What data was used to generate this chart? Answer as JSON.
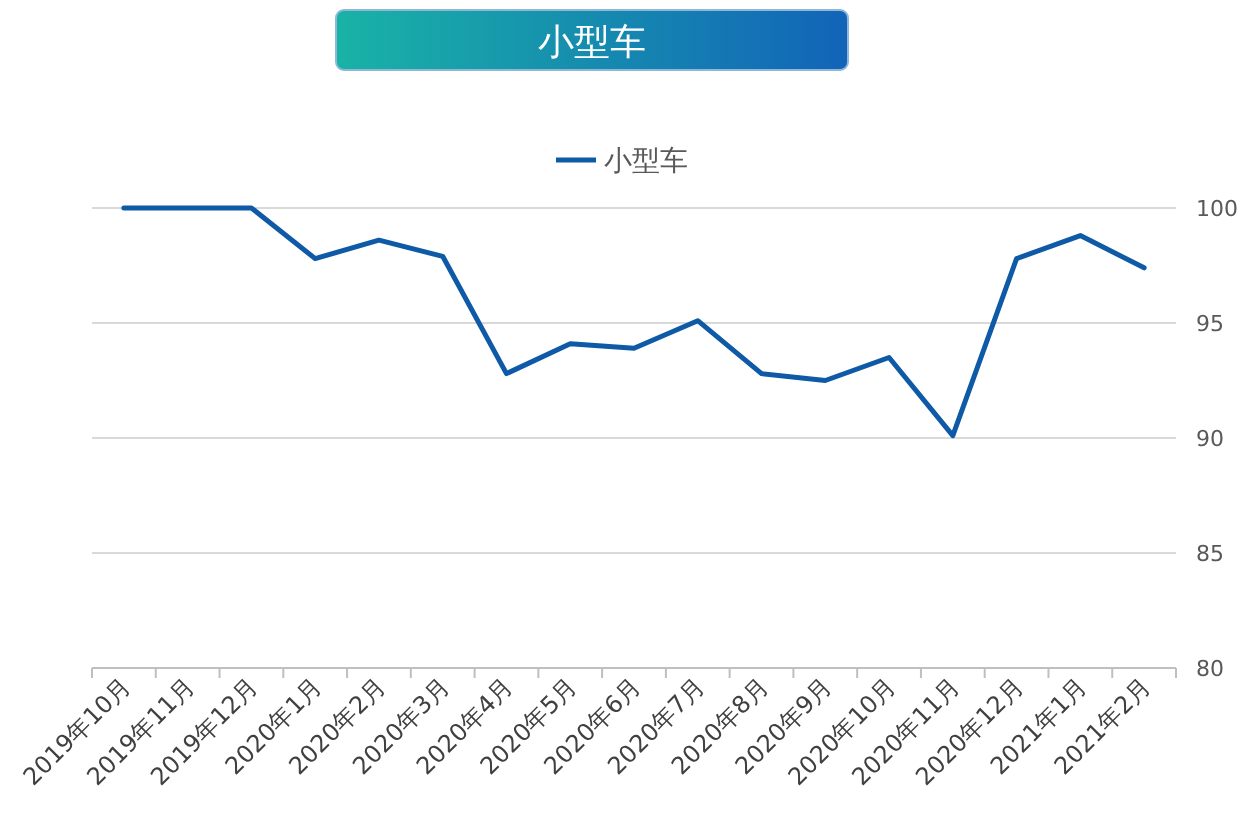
{
  "chart_data": {
    "type": "line",
    "title": "小型车",
    "categories": [
      "2019年10月",
      "2019年11月",
      "2019年12月",
      "2020年1月",
      "2020年2月",
      "2020年3月",
      "2020年4月",
      "2020年5月",
      "2020年6月",
      "2020年7月",
      "2020年8月",
      "2020年9月",
      "2020年10月",
      "2020年11月",
      "2020年12月",
      "2021年1月",
      "2021年2月"
    ],
    "series": [
      {
        "name": "小型车",
        "color": "#0e5aa7",
        "values": [
          100,
          100,
          100,
          97.8,
          98.6,
          97.9,
          92.8,
          94.1,
          93.9,
          95.1,
          92.8,
          92.5,
          93.5,
          90.1,
          97.8,
          98.8,
          97.4
        ]
      }
    ],
    "ylim": [
      80,
      100
    ],
    "yticks": [
      80,
      85,
      90,
      95,
      100
    ],
    "grid": "y",
    "legend": "top",
    "marker": "none",
    "line_style": "solid"
  }
}
